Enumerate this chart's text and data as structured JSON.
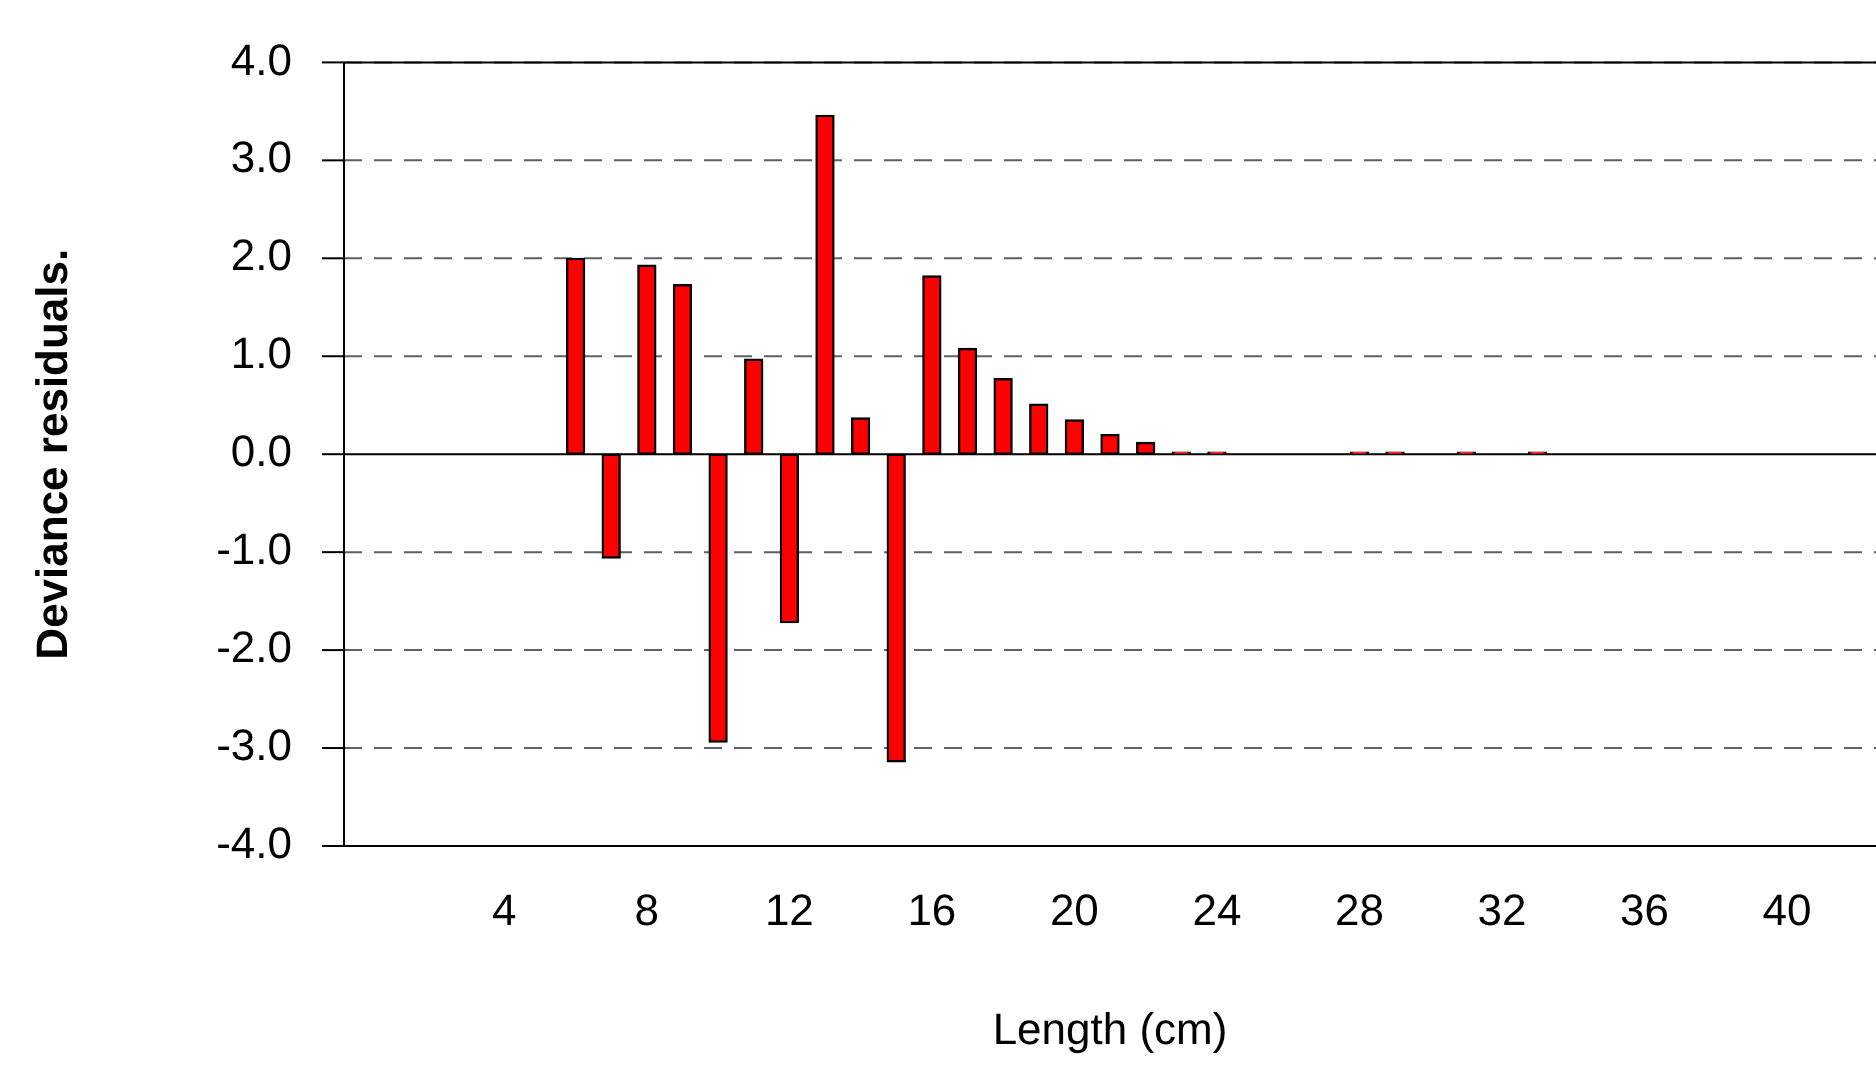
{
  "chart_data": {
    "type": "bar",
    "xlabel": "Length (cm)",
    "ylabel": "Deviance residuals.",
    "x": [
      6,
      7,
      8,
      9,
      10,
      11,
      12,
      13,
      14,
      15,
      16,
      17,
      18,
      19,
      20,
      21,
      22,
      23,
      24,
      25,
      26,
      27,
      28,
      29,
      30,
      31,
      32,
      33
    ],
    "values": [
      2.0,
      -1.06,
      1.93,
      1.73,
      -2.94,
      0.97,
      -1.72,
      3.46,
      0.37,
      -3.14,
      1.82,
      1.08,
      0.77,
      0.51,
      0.35,
      0.2,
      0.12,
      0.02,
      0.02,
      null,
      null,
      null,
      0.02,
      0.02,
      null,
      0.02,
      null,
      0.02
    ],
    "color": "#ff0000",
    "xlim": [
      -0.5,
      42.5
    ],
    "xticks": [
      4,
      8,
      12,
      16,
      20,
      24,
      28,
      32,
      36,
      40
    ],
    "ylim": [
      -4,
      4
    ],
    "yticks": [
      {
        "value": -4,
        "label": "-4.0"
      },
      {
        "value": -3,
        "label": "-3.0"
      },
      {
        "value": -2,
        "label": "-2.0"
      },
      {
        "value": -1,
        "label": "-1.0"
      },
      {
        "value": 0,
        "label": "0.0"
      },
      {
        "value": 1,
        "label": "1.0"
      },
      {
        "value": 2,
        "label": "2.0"
      },
      {
        "value": 3,
        "label": "3.0"
      },
      {
        "value": 4,
        "label": "4.0"
      }
    ],
    "grid": "y",
    "legend": false
  }
}
